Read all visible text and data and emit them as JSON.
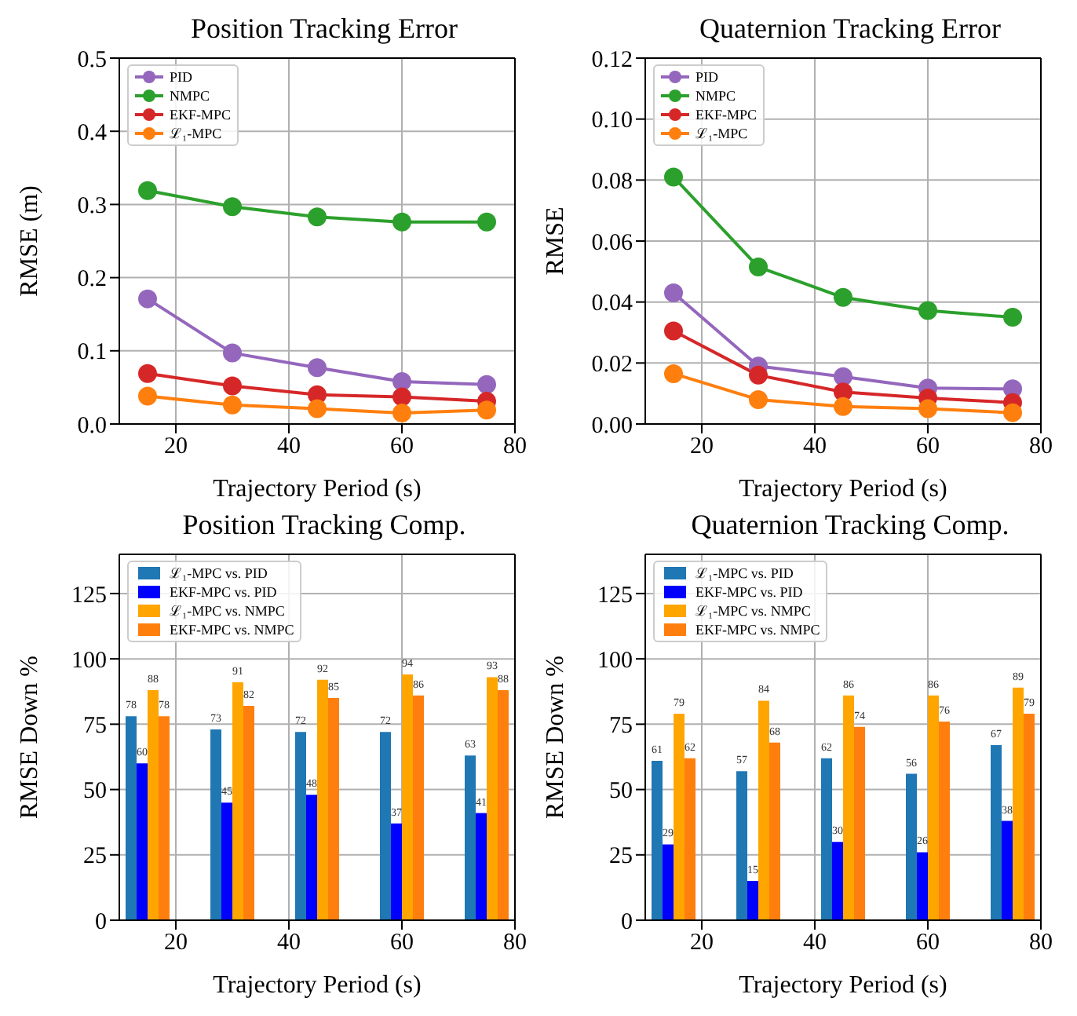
{
  "chart_data": [
    {
      "type": "line",
      "title": "Position Tracking Error",
      "xlabel": "Trajectory Period (s)",
      "ylabel": "RMSE (m)",
      "x": [
        15,
        30,
        45,
        60,
        75
      ],
      "xlim": [
        10,
        80
      ],
      "xticks": [
        20,
        40,
        60,
        80
      ],
      "ylim": [
        0,
        0.5
      ],
      "yticks": [
        {
          "value": 0,
          "label": "0.0"
        },
        {
          "value": 0.1,
          "label": "0.1"
        },
        {
          "value": 0.2,
          "label": "0.2"
        },
        {
          "value": 0.3,
          "label": "0.3"
        },
        {
          "value": 0.4,
          "label": "0.4"
        },
        {
          "value": 0.5,
          "label": "0.5"
        }
      ],
      "grid": true,
      "legend": "top left",
      "marker": "circle",
      "series": [
        {
          "name": "PID",
          "color": "#9467bd",
          "values": [
            0.171,
            0.097,
            0.077,
            0.058,
            0.054
          ]
        },
        {
          "name": "NMPC",
          "color": "#2ca02c",
          "values": [
            0.319,
            0.297,
            0.283,
            0.276,
            0.276
          ]
        },
        {
          "name": "EKF-MPC",
          "color": "#d62728",
          "values": [
            0.069,
            0.052,
            0.04,
            0.037,
            0.031
          ]
        },
        {
          "name": "ℒ₁-MPC",
          "color": "#ff7f0e",
          "values": [
            0.038,
            0.026,
            0.021,
            0.015,
            0.019
          ]
        }
      ]
    },
    {
      "type": "line",
      "title": "Quaternion Tracking Error",
      "xlabel": "Trajectory Period (s)",
      "ylabel": "RMSE",
      "x": [
        15,
        30,
        45,
        60,
        75
      ],
      "xlim": [
        10,
        80
      ],
      "xticks": [
        20,
        40,
        60,
        80
      ],
      "ylim": [
        0,
        0.12
      ],
      "yticks": [
        {
          "value": 0,
          "label": "0.00"
        },
        {
          "value": 0.02,
          "label": "0.02"
        },
        {
          "value": 0.04,
          "label": "0.04"
        },
        {
          "value": 0.06,
          "label": "0.06"
        },
        {
          "value": 0.08,
          "label": "0.08"
        },
        {
          "value": 0.1,
          "label": "0.10"
        },
        {
          "value": 0.12,
          "label": "0.12"
        }
      ],
      "grid": true,
      "legend": "top left",
      "marker": "circle",
      "series": [
        {
          "name": "PID",
          "color": "#9467bd",
          "values": [
            0.043,
            0.019,
            0.0155,
            0.0118,
            0.0115
          ]
        },
        {
          "name": "NMPC",
          "color": "#2ca02c",
          "values": [
            0.081,
            0.0515,
            0.0415,
            0.0372,
            0.035
          ]
        },
        {
          "name": "EKF-MPC",
          "color": "#d62728",
          "values": [
            0.0305,
            0.016,
            0.0105,
            0.0085,
            0.007
          ]
        },
        {
          "name": "ℒ₁-MPC",
          "color": "#ff7f0e",
          "values": [
            0.0165,
            0.008,
            0.0057,
            0.005,
            0.0037
          ]
        }
      ]
    },
    {
      "type": "bar",
      "title": "Position Tracking Comp.",
      "xlabel": "Trajectory Period (s)",
      "ylabel": "RMSE Down %",
      "x": [
        15,
        30,
        45,
        60,
        75
      ],
      "xlim": [
        10,
        80
      ],
      "xticks": [
        20,
        40,
        60,
        80
      ],
      "ylim": [
        0,
        140
      ],
      "yticks": [
        0,
        25,
        50,
        75,
        100,
        125
      ],
      "grid": true,
      "legend": "top left",
      "data_labels": true,
      "series": [
        {
          "name": "ℒ₁-MPC vs. PID",
          "color": "#1f77b4",
          "values": [
            78,
            73,
            72,
            72,
            63
          ]
        },
        {
          "name": "EKF-MPC vs. PID",
          "color": "#0000ff",
          "values": [
            60,
            45,
            48,
            37,
            41
          ]
        },
        {
          "name": "ℒ₁-MPC vs. NMPC",
          "color": "#ffa500",
          "values": [
            88,
            91,
            92,
            94,
            93
          ]
        },
        {
          "name": "EKF-MPC vs. NMPC",
          "color": "#ff7f0e",
          "values": [
            78,
            82,
            85,
            86,
            88
          ]
        }
      ]
    },
    {
      "type": "bar",
      "title": "Quaternion Tracking Comp.",
      "xlabel": "Trajectory Period (s)",
      "ylabel": "RMSE Down %",
      "x": [
        15,
        30,
        45,
        60,
        75
      ],
      "xlim": [
        10,
        80
      ],
      "xticks": [
        20,
        40,
        60,
        80
      ],
      "ylim": [
        0,
        140
      ],
      "yticks": [
        0,
        25,
        50,
        75,
        100,
        125
      ],
      "grid": true,
      "legend": "top left",
      "data_labels": true,
      "series": [
        {
          "name": "ℒ₁-MPC vs. PID",
          "color": "#1f77b4",
          "values": [
            61,
            57,
            62,
            56,
            67
          ]
        },
        {
          "name": "EKF-MPC vs. PID",
          "color": "#0000ff",
          "values": [
            29,
            15,
            30,
            26,
            38
          ]
        },
        {
          "name": "ℒ₁-MPC vs. NMPC",
          "color": "#ffa500",
          "values": [
            79,
            84,
            86,
            86,
            89
          ]
        },
        {
          "name": "EKF-MPC vs. NMPC",
          "color": "#ff7f0e",
          "values": [
            62,
            68,
            74,
            76,
            79
          ]
        }
      ]
    }
  ]
}
